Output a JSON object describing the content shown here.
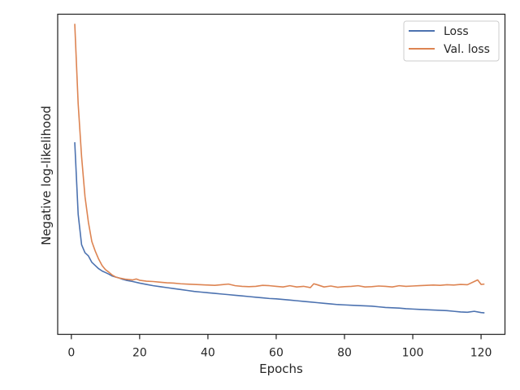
{
  "chart_data": {
    "type": "line",
    "title": "",
    "xlabel": "Epochs",
    "ylabel": "Negative log-likelihood",
    "xlim": [
      -4,
      127
    ],
    "ylim": [
      0,
      100
    ],
    "xticks": [
      0,
      20,
      40,
      60,
      80,
      100,
      120
    ],
    "xtick_labels": [
      "0",
      "20",
      "40",
      "60",
      "80",
      "100",
      "120"
    ],
    "yticks_shown": false,
    "grid": false,
    "legend_position": "top-right",
    "series": [
      {
        "name": "Loss",
        "color": "#4c72b0",
        "x": [
          1,
          2,
          3,
          4,
          5,
          6,
          7,
          8,
          9,
          10,
          11,
          12,
          13,
          14,
          15,
          16,
          18,
          20,
          22,
          24,
          26,
          28,
          30,
          32,
          34,
          36,
          38,
          40,
          42,
          44,
          46,
          48,
          50,
          52,
          54,
          56,
          58,
          60,
          62,
          64,
          66,
          68,
          70,
          72,
          74,
          76,
          78,
          80,
          82,
          84,
          86,
          88,
          90,
          92,
          94,
          96,
          98,
          100,
          102,
          104,
          106,
          108,
          110,
          112,
          114,
          116,
          118,
          120,
          121
        ],
        "y": [
          60.0,
          37.5,
          28.0,
          25.5,
          24.5,
          22.5,
          21.5,
          20.5,
          19.8,
          19.3,
          18.8,
          18.2,
          17.9,
          17.6,
          17.2,
          16.9,
          16.5,
          16.0,
          15.6,
          15.2,
          14.9,
          14.6,
          14.3,
          14.0,
          13.7,
          13.4,
          13.2,
          13.0,
          12.8,
          12.6,
          12.4,
          12.2,
          12.0,
          11.8,
          11.6,
          11.4,
          11.2,
          11.1,
          10.9,
          10.7,
          10.5,
          10.3,
          10.1,
          9.9,
          9.7,
          9.5,
          9.3,
          9.2,
          9.1,
          9.0,
          8.9,
          8.8,
          8.6,
          8.4,
          8.3,
          8.2,
          8.0,
          7.9,
          7.8,
          7.7,
          7.6,
          7.5,
          7.4,
          7.2,
          7.0,
          6.9,
          7.2,
          6.8,
          6.7
        ]
      },
      {
        "name": "Val. loss",
        "color": "#dd8452",
        "x": [
          1,
          2,
          3,
          4,
          5,
          6,
          7,
          8,
          9,
          10,
          11,
          12,
          13,
          14,
          15,
          16,
          18,
          19,
          20,
          22,
          24,
          26,
          28,
          30,
          32,
          34,
          36,
          38,
          40,
          42,
          44,
          46,
          48,
          50,
          52,
          54,
          56,
          58,
          60,
          62,
          64,
          66,
          68,
          70,
          71,
          72,
          74,
          76,
          78,
          80,
          82,
          84,
          86,
          88,
          90,
          92,
          94,
          96,
          98,
          100,
          102,
          104,
          106,
          108,
          110,
          112,
          114,
          116,
          118,
          119,
          120,
          121
        ],
        "y": [
          97.0,
          72.0,
          55.5,
          43.0,
          35.0,
          29.0,
          26.0,
          23.5,
          21.5,
          20.2,
          19.4,
          18.5,
          17.9,
          17.6,
          17.4,
          17.2,
          17.0,
          17.3,
          16.9,
          16.6,
          16.5,
          16.3,
          16.1,
          16.0,
          15.8,
          15.7,
          15.6,
          15.5,
          15.4,
          15.3,
          15.5,
          15.7,
          15.2,
          15.0,
          14.9,
          15.0,
          15.3,
          15.2,
          15.0,
          14.8,
          15.2,
          14.8,
          15.0,
          14.6,
          15.8,
          15.5,
          14.8,
          15.1,
          14.7,
          14.9,
          15.0,
          15.2,
          14.8,
          14.9,
          15.1,
          15.0,
          14.8,
          15.2,
          15.0,
          15.1,
          15.2,
          15.3,
          15.4,
          15.3,
          15.5,
          15.4,
          15.6,
          15.5,
          16.5,
          17.0,
          15.6,
          15.7
        ]
      }
    ]
  }
}
